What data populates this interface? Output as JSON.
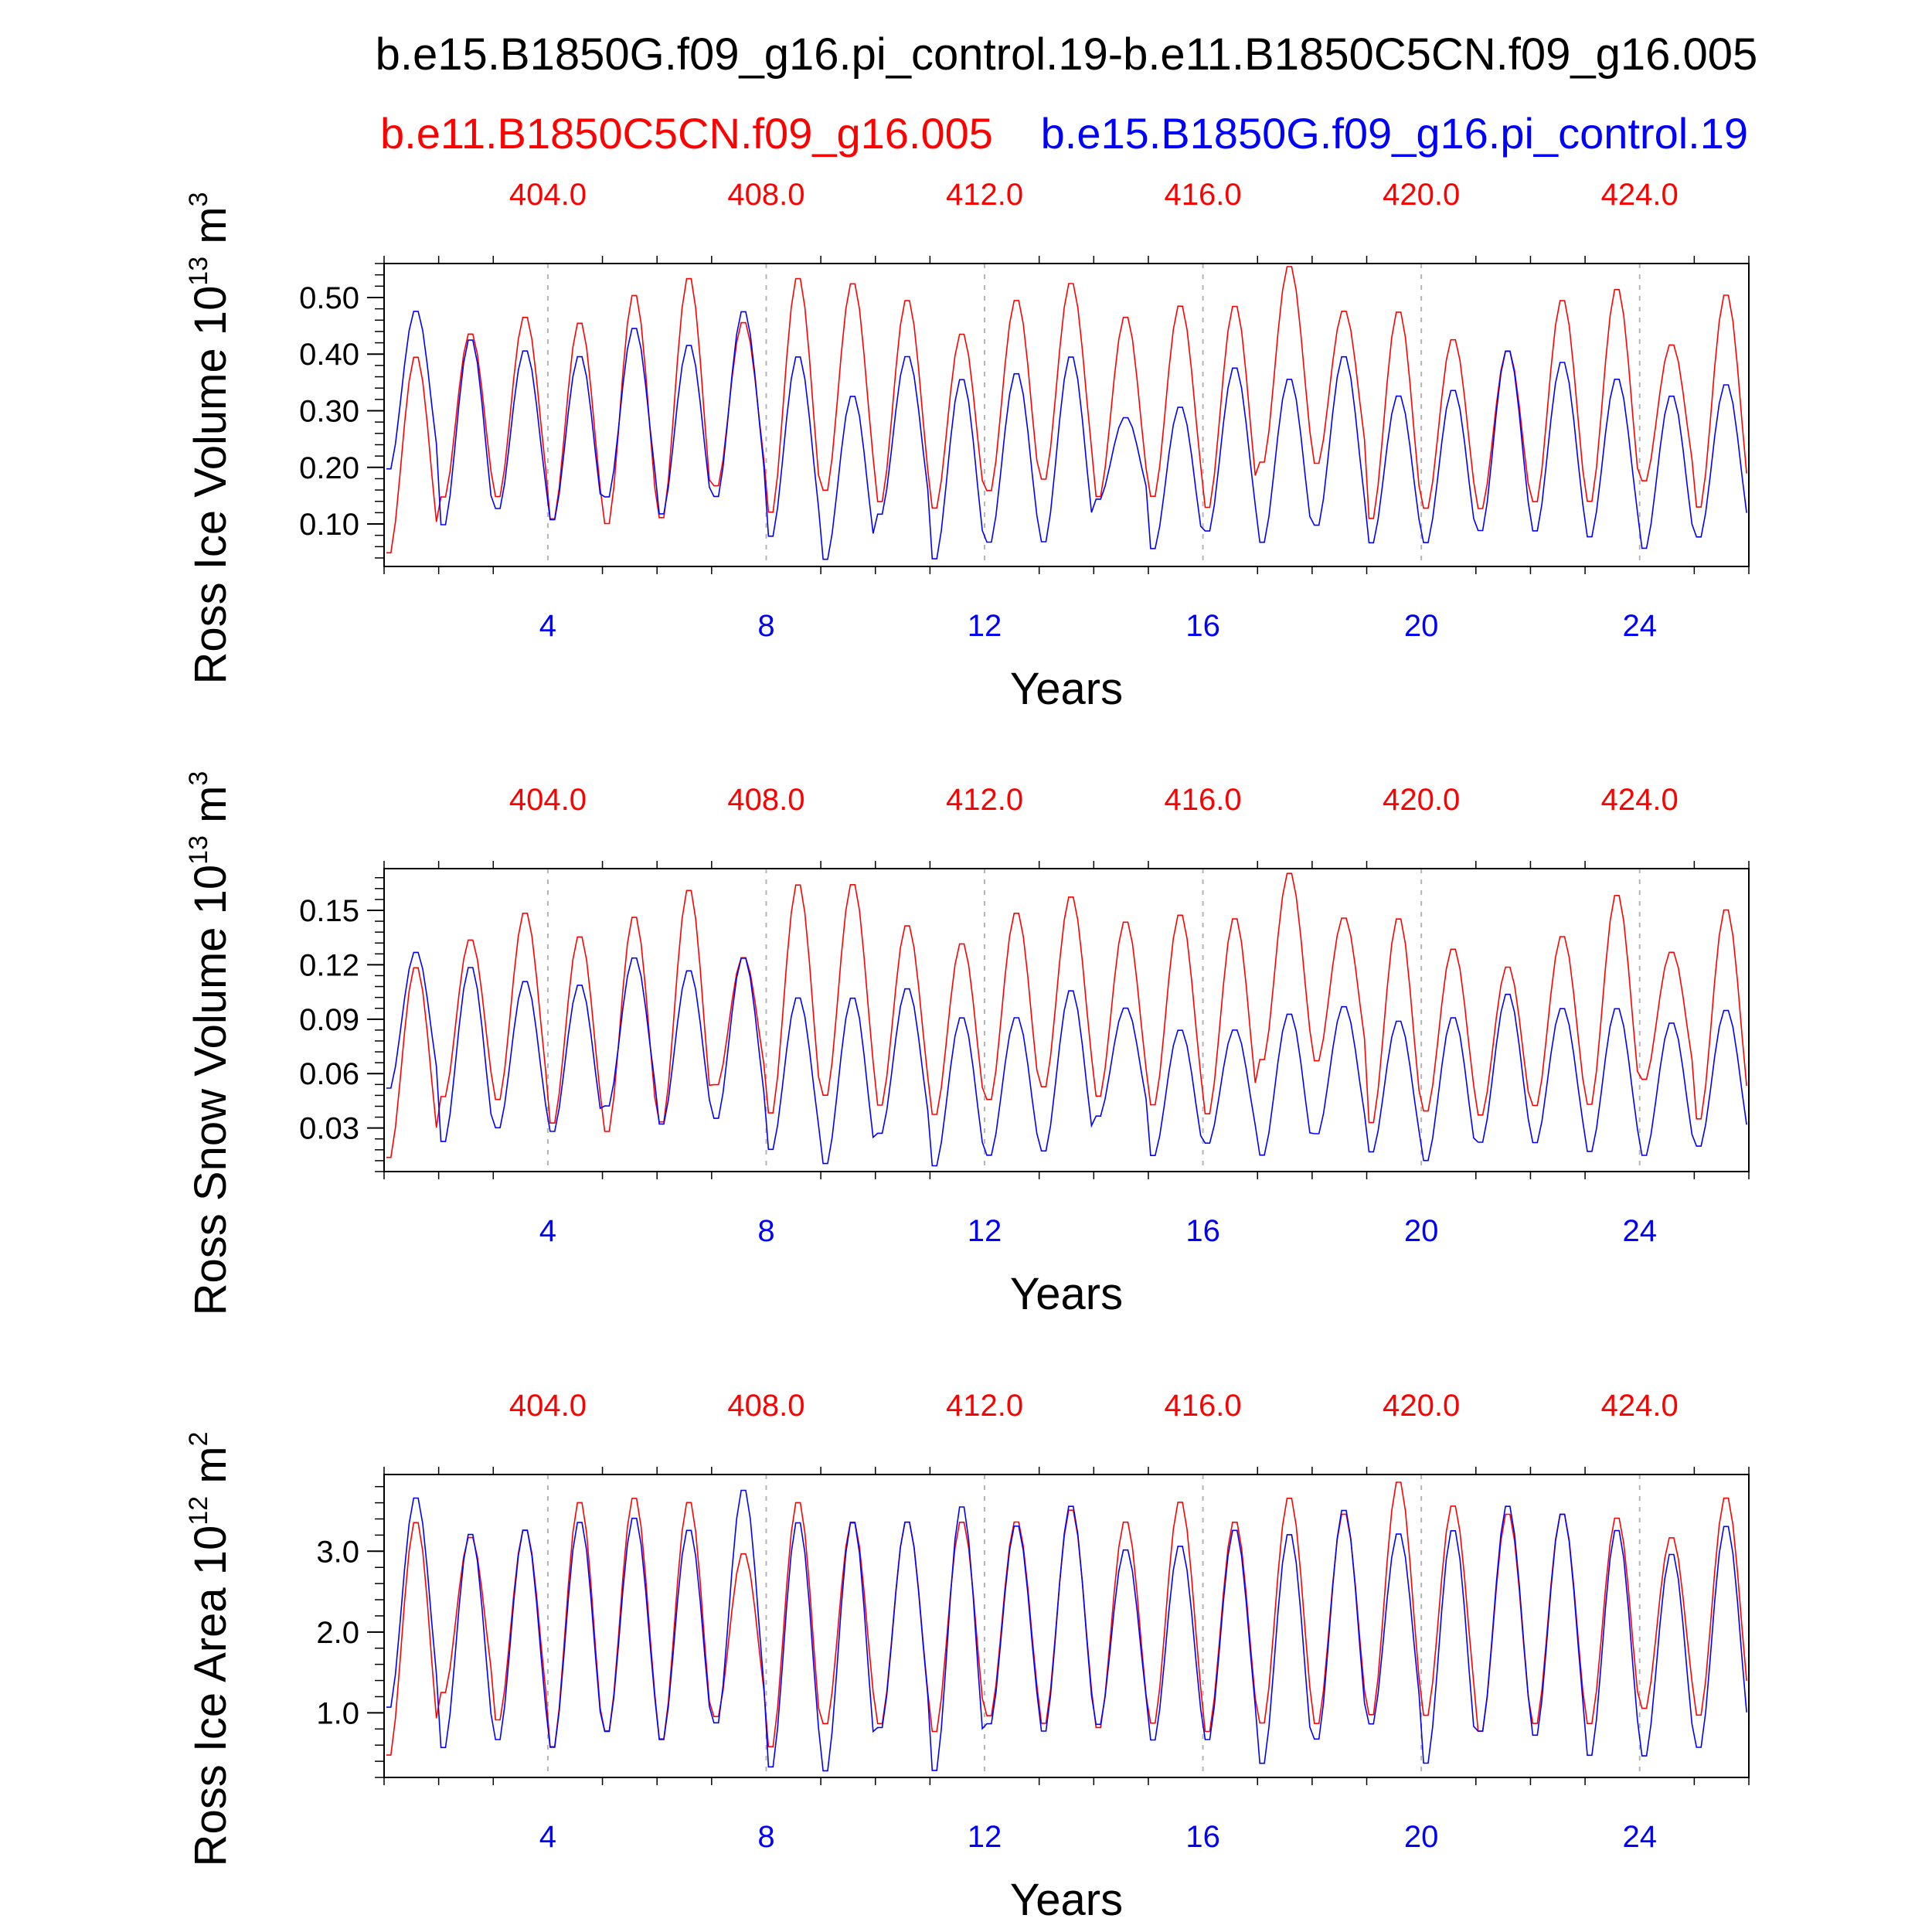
{
  "figure_title": "b.e15.B1850G.f09_g16.pi_control.19-b.e11.B1850C5CN.f09_g16.005",
  "legend": {
    "red_label": "b.e11.B1850C5CN.f09_g16.005",
    "blue_label": "b.e15.B1850G.f09_g16.pi_control.19"
  },
  "colors": {
    "red": "#ff0000",
    "blue": "#0000ff",
    "axis": "#000000",
    "grid": "#b4b4b4"
  },
  "chart_data": [
    {
      "type": "line",
      "ylabel_main": "Ross Ice Volume 10",
      "ylabel_exp": "13",
      "ylabel_unit": "m",
      "ylabel_unit_exp": "3",
      "xlabel": "Years",
      "xlim": [
        1,
        26
      ],
      "ylim": [
        0.025,
        0.56
      ],
      "yticks": [
        0.1,
        0.2,
        0.3,
        0.4,
        0.5
      ],
      "ytick_labels": [
        "0.10",
        "0.20",
        "0.30",
        "0.40",
        "0.50"
      ],
      "xticks_bottom": [
        4,
        8,
        12,
        16,
        20,
        24
      ],
      "xtick_labels_bottom": [
        "4",
        "8",
        "12",
        "16",
        "20",
        "24"
      ],
      "xtick_labels_top": [
        "404.0",
        "408.0",
        "412.0",
        "416.0",
        "420.0",
        "424.0"
      ],
      "grid": "dashed vertical at major x ticks",
      "series": [
        {
          "name": "b.e11.B1850C5CN.f09_g16.005",
          "color": "#ff0000",
          "min": [
            0.04,
            0.14,
            0.14,
            0.1,
            0.09,
            0.1,
            0.16,
            0.11,
            0.15,
            0.13,
            0.12,
            0.15,
            0.17,
            0.14,
            0.14,
            0.12,
            0.2,
            0.2,
            0.1,
            0.12,
            0.12,
            0.13,
            0.13,
            0.17,
            0.12
          ],
          "max": [
            0.4,
            0.44,
            0.47,
            0.46,
            0.51,
            0.54,
            0.46,
            0.54,
            0.53,
            0.5,
            0.44,
            0.5,
            0.53,
            0.47,
            0.49,
            0.49,
            0.56,
            0.48,
            0.48,
            0.43,
            0.41,
            0.5,
            0.52,
            0.42,
            0.51
          ]
        },
        {
          "name": "b.e15.B1850G.f09_g16.pi_control.19",
          "color": "#0000ff",
          "min": [
            0.19,
            0.09,
            0.12,
            0.1,
            0.14,
            0.11,
            0.14,
            0.07,
            0.03,
            0.11,
            0.03,
            0.06,
            0.06,
            0.14,
            0.05,
            0.08,
            0.06,
            0.09,
            0.06,
            0.06,
            0.08,
            0.08,
            0.07,
            0.05,
            0.07
          ],
          "max": [
            0.48,
            0.43,
            0.41,
            0.4,
            0.45,
            0.42,
            0.48,
            0.4,
            0.33,
            0.4,
            0.36,
            0.37,
            0.4,
            0.29,
            0.31,
            0.38,
            0.36,
            0.4,
            0.33,
            0.34,
            0.41,
            0.39,
            0.36,
            0.33,
            0.35
          ]
        }
      ]
    },
    {
      "type": "line",
      "ylabel_main": "Ross Snow Volume 10",
      "ylabel_exp": "13",
      "ylabel_unit": "m",
      "ylabel_unit_exp": "3",
      "xlabel": "Years",
      "xlim": [
        1,
        26
      ],
      "ylim": [
        0.006,
        0.173
      ],
      "yticks": [
        0.03,
        0.06,
        0.09,
        0.12,
        0.15
      ],
      "ytick_labels": [
        "0.03",
        "0.06",
        "0.09",
        "0.12",
        "0.15"
      ],
      "xticks_bottom": [
        4,
        8,
        12,
        16,
        20,
        24
      ],
      "xtick_labels_bottom": [
        "4",
        "8",
        "12",
        "16",
        "20",
        "24"
      ],
      "xtick_labels_top": [
        "404.0",
        "408.0",
        "412.0",
        "416.0",
        "420.0",
        "424.0"
      ],
      "grid": "dashed vertical at major x ticks",
      "series": [
        {
          "name": "b.e11.B1850C5CN.f09_g16.005",
          "color": "#ff0000",
          "min": [
            0.011,
            0.045,
            0.043,
            0.03,
            0.025,
            0.03,
            0.052,
            0.035,
            0.045,
            0.04,
            0.035,
            0.043,
            0.05,
            0.045,
            0.04,
            0.035,
            0.065,
            0.065,
            0.03,
            0.037,
            0.035,
            0.04,
            0.04,
            0.055,
            0.032
          ],
          "max": [
            0.12,
            0.135,
            0.15,
            0.137,
            0.148,
            0.163,
            0.125,
            0.166,
            0.166,
            0.143,
            0.133,
            0.15,
            0.159,
            0.145,
            0.149,
            0.147,
            0.172,
            0.147,
            0.147,
            0.13,
            0.12,
            0.137,
            0.16,
            0.128,
            0.152
          ]
        },
        {
          "name": "b.e15.B1850G.f09_g16.pi_control.19",
          "color": "#0000ff",
          "min": [
            0.05,
            0.02,
            0.028,
            0.026,
            0.04,
            0.03,
            0.033,
            0.016,
            0.008,
            0.025,
            0.007,
            0.013,
            0.015,
            0.035,
            0.013,
            0.02,
            0.013,
            0.025,
            0.015,
            0.01,
            0.02,
            0.02,
            0.015,
            0.013,
            0.018
          ],
          "max": [
            0.128,
            0.12,
            0.112,
            0.11,
            0.125,
            0.118,
            0.125,
            0.103,
            0.103,
            0.108,
            0.092,
            0.092,
            0.107,
            0.097,
            0.085,
            0.085,
            0.094,
            0.098,
            0.09,
            0.092,
            0.105,
            0.097,
            0.097,
            0.089,
            0.096
          ]
        }
      ]
    },
    {
      "type": "line",
      "ylabel_main": "Ross Ice Area 10",
      "ylabel_exp": "12",
      "ylabel_unit": "m",
      "ylabel_unit_exp": "2",
      "xlabel": "Years",
      "xlim": [
        1,
        26
      ],
      "ylim": [
        0.2,
        3.95
      ],
      "yticks": [
        1.0,
        2.0,
        3.0
      ],
      "ytick_labels": [
        "1.0",
        "2.0",
        "3.0"
      ],
      "xticks_bottom": [
        4,
        8,
        12,
        16,
        20,
        24
      ],
      "xtick_labels_bottom": [
        "4",
        "8",
        "12",
        "16",
        "20",
        "24"
      ],
      "xtick_labels_top": [
        "404.0",
        "408.0",
        "412.0",
        "416.0",
        "420.0",
        "424.0"
      ],
      "grid": "dashed vertical at major x ticks",
      "series": [
        {
          "name": "b.e11.B1850C5CN.f09_g16.005",
          "color": "#ff0000",
          "min": [
            0.4,
            1.2,
            0.85,
            0.5,
            0.7,
            0.6,
            0.9,
            0.5,
            0.8,
            0.8,
            0.7,
            0.9,
            0.8,
            0.75,
            0.8,
            0.7,
            0.8,
            0.8,
            0.9,
            0.9,
            0.7,
            0.8,
            0.8,
            1.0,
            0.9
          ],
          "max": [
            3.4,
            3.2,
            3.3,
            3.65,
            3.7,
            3.65,
            3.0,
            3.65,
            3.4,
            3.4,
            3.4,
            3.4,
            3.55,
            3.4,
            3.65,
            3.4,
            3.7,
            3.5,
            3.9,
            3.6,
            3.5,
            3.5,
            3.45,
            3.2,
            3.7
          ]
        },
        {
          "name": "b.e15.B1850G.f09_g16.pi_control.19",
          "color": "#0000ff",
          "min": [
            1.0,
            0.5,
            0.6,
            0.5,
            0.7,
            0.6,
            0.8,
            0.25,
            0.2,
            0.75,
            0.2,
            0.8,
            0.7,
            0.8,
            0.6,
            0.6,
            0.3,
            0.6,
            0.8,
            0.3,
            0.7,
            0.65,
            0.4,
            0.4,
            0.5
          ],
          "max": [
            3.7,
            3.25,
            3.3,
            3.4,
            3.45,
            3.3,
            3.8,
            3.4,
            3.4,
            3.4,
            3.6,
            3.35,
            3.6,
            3.05,
            3.1,
            3.3,
            3.25,
            3.55,
            3.25,
            3.3,
            3.6,
            3.5,
            3.3,
            3.0,
            3.35
          ]
        }
      ]
    }
  ]
}
